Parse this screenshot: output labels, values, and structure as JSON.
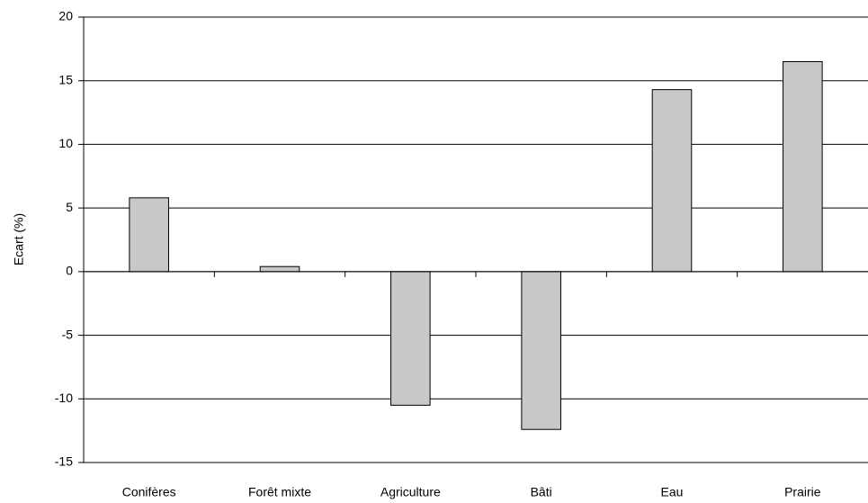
{
  "chart_data": {
    "type": "bar",
    "y_label": "Ecart (%)",
    "categories": [
      "Conifères",
      "Forêt mixte",
      "Agriculture",
      "Bâti",
      "Eau",
      "Prairie"
    ],
    "values": [
      5.8,
      0.4,
      -10.5,
      -12.4,
      14.3,
      16.5
    ],
    "color": "#c8c8c8",
    "ylim": [
      -15,
      20
    ],
    "yticks": [
      -15,
      -10,
      -5,
      0,
      5,
      10,
      15,
      20
    ],
    "grid": true
  }
}
